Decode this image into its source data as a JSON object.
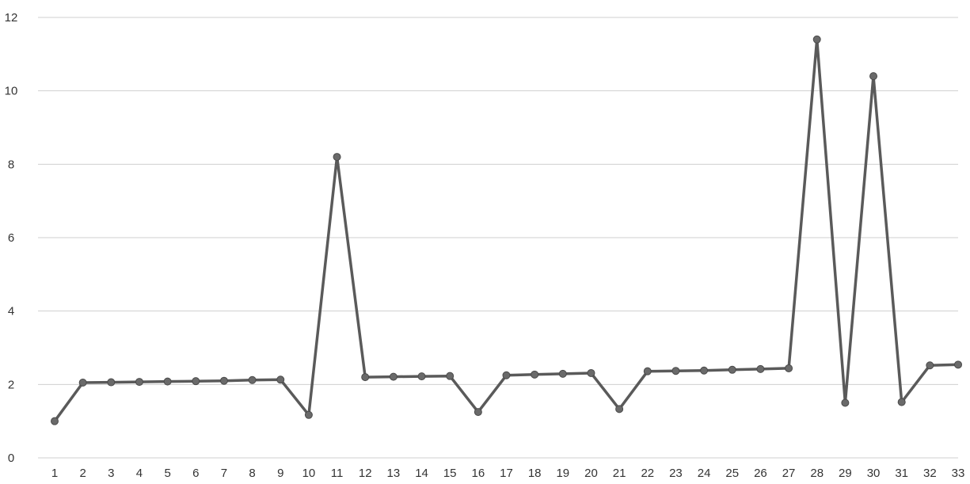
{
  "chart_data": {
    "type": "line",
    "title": "",
    "xlabel": "",
    "ylabel": "",
    "ylim": [
      0,
      12
    ],
    "yticks": [
      0,
      2,
      4,
      6,
      8,
      10,
      12
    ],
    "grid": true,
    "legend": "none",
    "x": [
      1,
      2,
      3,
      4,
      5,
      6,
      7,
      8,
      9,
      10,
      11,
      12,
      13,
      14,
      15,
      16,
      17,
      18,
      19,
      20,
      21,
      22,
      23,
      24,
      25,
      26,
      27,
      28,
      29,
      30,
      31,
      32,
      33
    ],
    "series": [
      {
        "color": "#5a5a5a",
        "values": [
          1.0,
          2.05,
          2.06,
          2.07,
          2.08,
          2.09,
          2.1,
          2.12,
          2.13,
          1.17,
          8.2,
          2.2,
          2.21,
          2.22,
          2.23,
          1.25,
          2.25,
          2.27,
          2.29,
          2.31,
          1.33,
          2.36,
          2.37,
          2.38,
          2.4,
          2.42,
          2.44,
          11.4,
          1.5,
          10.4,
          1.52,
          2.52,
          2.54
        ]
      }
    ]
  }
}
